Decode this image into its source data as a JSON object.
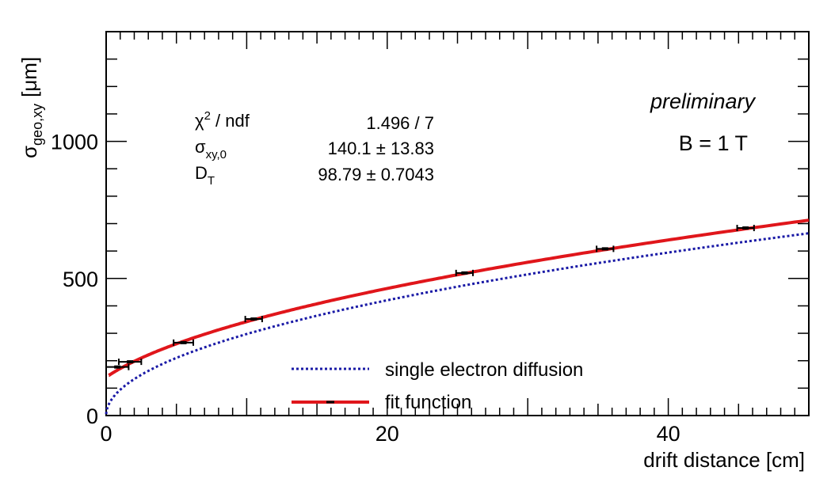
{
  "chart_data": {
    "type": "line",
    "xlabel": "drift distance [cm]",
    "ylabel": {
      "main": "σ",
      "sub": "geo,xy",
      "unit": "[μm]"
    },
    "xlim": [
      0,
      50
    ],
    "ylim": [
      0,
      1400
    ],
    "xticks": [
      {
        "value": 0,
        "label": "0"
      },
      {
        "value": 20,
        "label": "20"
      },
      {
        "value": 40,
        "label": "40"
      }
    ],
    "yticks": [
      {
        "value": 0,
        "label": "0"
      },
      {
        "value": 500,
        "label": "500"
      },
      {
        "value": 1000,
        "label": "1000"
      }
    ],
    "points": [
      {
        "x": 0.8,
        "y": 177,
        "xerr": 0.8
      },
      {
        "x": 1.7,
        "y": 196,
        "xerr": 0.8
      },
      {
        "x": 5.5,
        "y": 266,
        "xerr": 0.7
      },
      {
        "x": 10.5,
        "y": 352,
        "xerr": 0.6
      },
      {
        "x": 25.5,
        "y": 520,
        "xerr": 0.6
      },
      {
        "x": 35.5,
        "y": 608,
        "xerr": 0.6
      },
      {
        "x": 45.5,
        "y": 684,
        "xerr": 0.6
      }
    ],
    "series": [
      {
        "name": "single electron diffusion",
        "style": "dotted",
        "color": "#1a1aa6",
        "model": {
          "sigma0": 0,
          "DT": 94.0
        }
      },
      {
        "name": "fit function",
        "style": "solid",
        "color": "#e0161b",
        "model": {
          "sigma0": 140.1,
          "DT": 98.79
        }
      }
    ],
    "stats": [
      {
        "label_main": "χ",
        "label_sup": "2",
        "label_rest": " / ndf",
        "value": "1.496 / 7"
      },
      {
        "label_main": "σ",
        "label_sub": "xy,0",
        "value": "140.1 ± 13.83"
      },
      {
        "label_main": "D",
        "label_sub": "T",
        "value": "98.79 ± 0.7043"
      }
    ],
    "annotations": {
      "preliminary": "preliminary",
      "field": "B = 1 T"
    }
  }
}
